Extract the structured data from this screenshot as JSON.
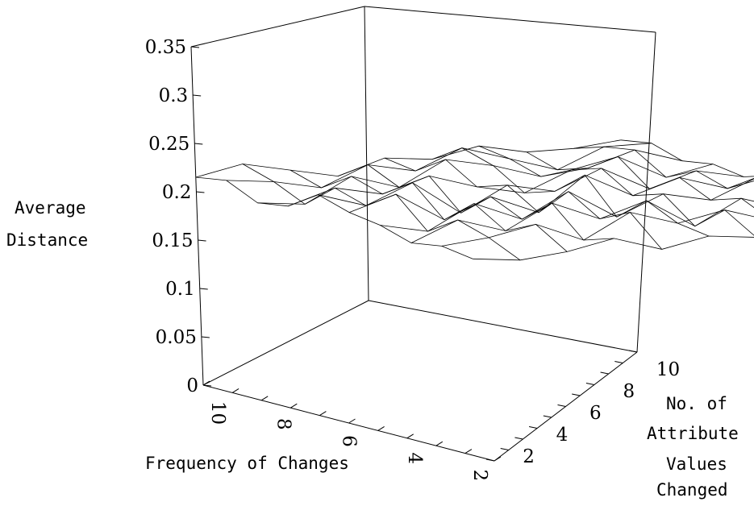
{
  "chart_data": {
    "type": "surface",
    "zlabel": [
      "Average",
      "Distance"
    ],
    "xlabel": "Frequency of Changes",
    "ylabel": [
      "No. of",
      "Attribute",
      "Values",
      "Changed"
    ],
    "zlim": [
      0,
      0.35
    ],
    "z_ticks": [
      "0",
      "0.05",
      "0.1",
      "0.15",
      "0.2",
      "0.25",
      "0.3",
      "0.35"
    ],
    "x_ticks": [
      "10",
      "8",
      "6",
      "4",
      "2"
    ],
    "y_ticks": [
      "2",
      "4",
      "6",
      "8",
      "10"
    ],
    "x": [
      1,
      2,
      3,
      4,
      5,
      6,
      7,
      8,
      9,
      10
    ],
    "y": [
      1,
      2,
      3,
      4,
      5,
      6,
      7,
      8,
      9,
      10
    ],
    "z": [
      [
        0.205,
        0.21,
        0.205,
        0.215,
        0.22,
        0.23,
        0.21,
        0.205,
        0.22,
        0.215
      ],
      [
        0.2,
        0.215,
        0.225,
        0.205,
        0.235,
        0.215,
        0.225,
        0.2,
        0.215,
        0.225
      ],
      [
        0.205,
        0.225,
        0.21,
        0.23,
        0.205,
        0.235,
        0.215,
        0.225,
        0.205,
        0.215
      ],
      [
        0.215,
        0.205,
        0.235,
        0.21,
        0.225,
        0.2,
        0.23,
        0.21,
        0.225,
        0.205
      ],
      [
        0.2,
        0.23,
        0.215,
        0.235,
        0.205,
        0.225,
        0.215,
        0.235,
        0.215,
        0.22
      ],
      [
        0.21,
        0.215,
        0.23,
        0.205,
        0.24,
        0.215,
        0.205,
        0.225,
        0.235,
        0.215
      ],
      [
        0.205,
        0.225,
        0.2,
        0.225,
        0.215,
        0.235,
        0.225,
        0.21,
        0.22,
        0.225
      ],
      [
        0.2,
        0.21,
        0.225,
        0.215,
        0.23,
        0.21,
        0.235,
        0.215,
        0.205,
        0.215
      ],
      [
        0.205,
        0.22,
        0.21,
        0.235,
        0.215,
        0.225,
        0.21,
        0.23,
        0.225,
        0.215
      ],
      [
        0.21,
        0.205,
        0.215,
        0.22,
        0.225,
        0.215,
        0.22,
        0.215,
        0.225,
        0.22
      ]
    ],
    "grid": false,
    "box": true
  }
}
